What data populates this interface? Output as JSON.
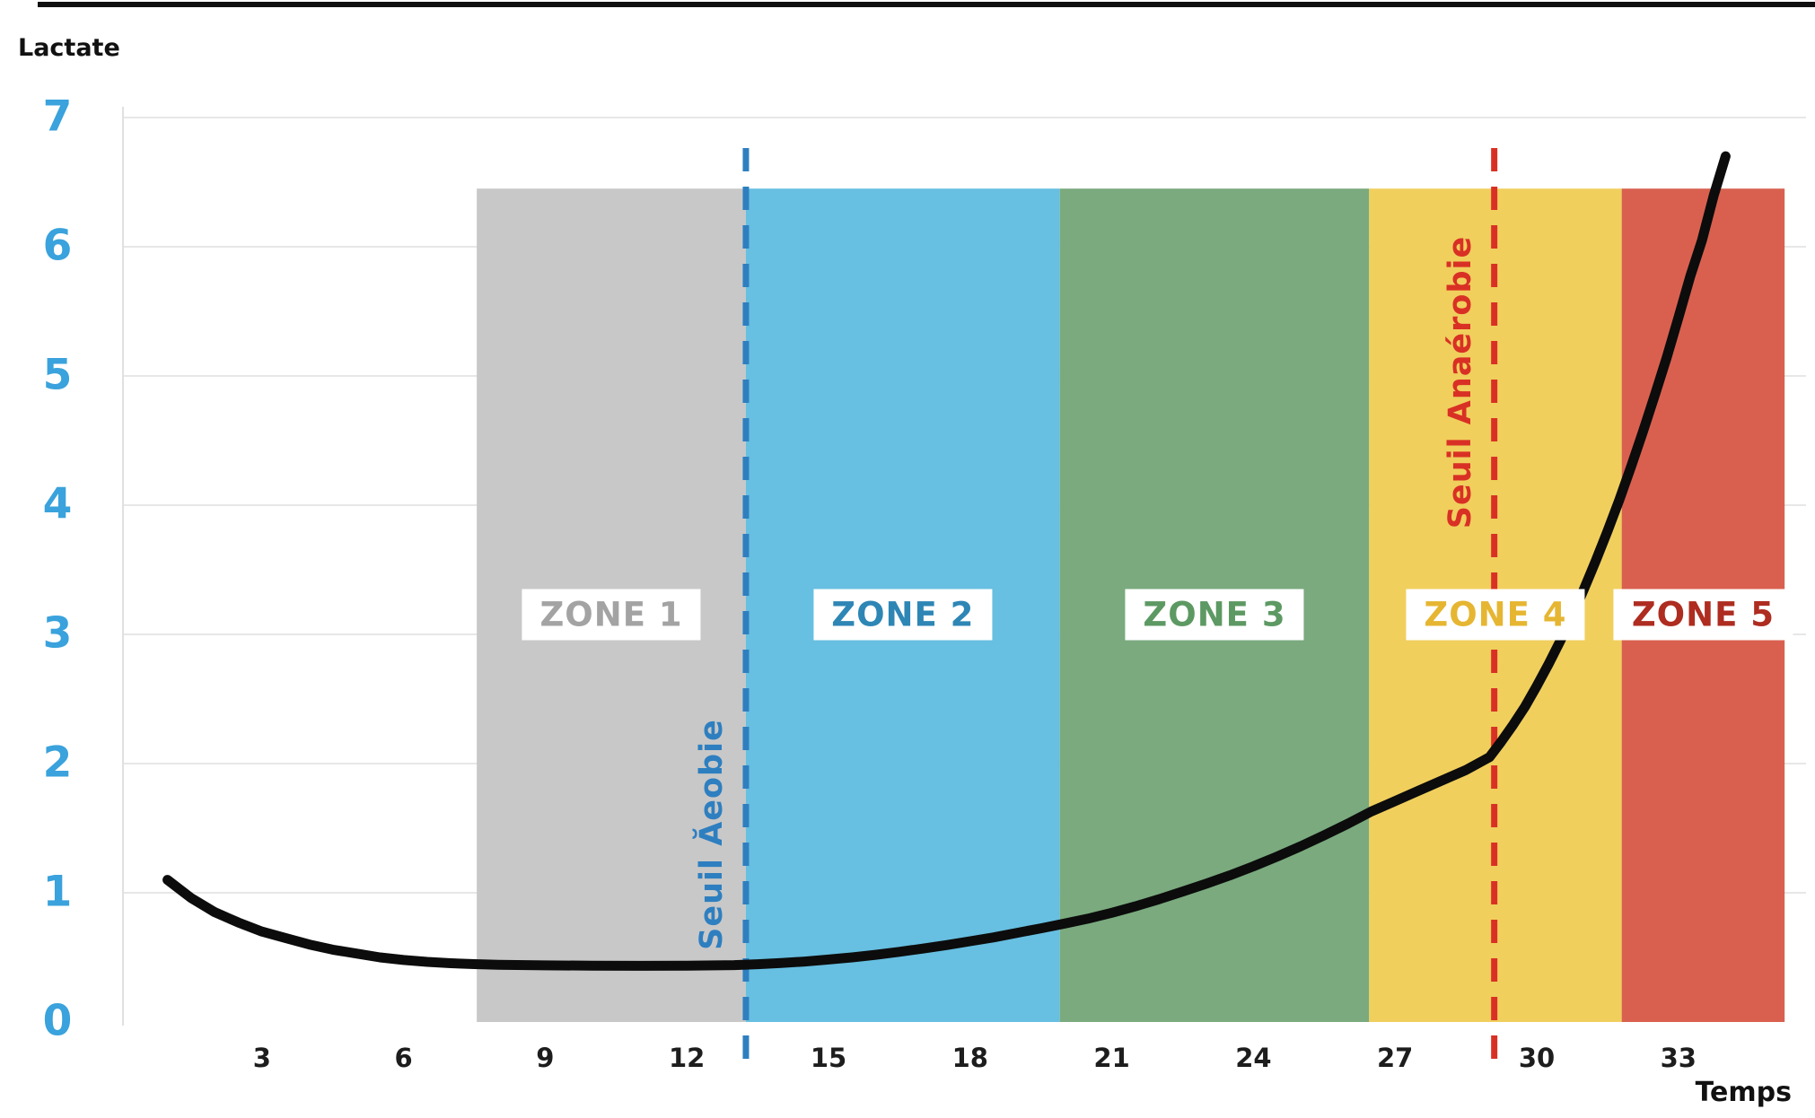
{
  "chart_data": {
    "type": "line",
    "title": "",
    "xlabel": "Temps",
    "ylabel": "Lactate",
    "xlim": [
      0,
      35.5
    ],
    "ylim": [
      0,
      7
    ],
    "x_ticks": [
      3,
      6,
      9,
      12,
      15,
      18,
      21,
      24,
      27,
      30,
      33
    ],
    "y_ticks": [
      0,
      1,
      2,
      3,
      4,
      5,
      6,
      7
    ],
    "grid": "horizontal",
    "legend": "none",
    "axis_tick_color": "#3aa2dc",
    "series": [
      {
        "name": "Lactate",
        "color": "#0c0c0c",
        "points": [
          [
            1,
            1.1
          ],
          [
            1.5,
            0.96
          ],
          [
            2,
            0.85
          ],
          [
            2.5,
            0.77
          ],
          [
            3,
            0.7
          ],
          [
            3.5,
            0.65
          ],
          [
            4,
            0.6
          ],
          [
            4.5,
            0.56
          ],
          [
            5,
            0.53
          ],
          [
            5.5,
            0.5
          ],
          [
            6,
            0.48
          ],
          [
            6.5,
            0.465
          ],
          [
            7,
            0.455
          ],
          [
            7.5,
            0.448
          ],
          [
            8,
            0.443
          ],
          [
            9,
            0.438
          ],
          [
            10,
            0.436
          ],
          [
            11,
            0.435
          ],
          [
            12,
            0.436
          ],
          [
            13,
            0.44
          ],
          [
            13.5,
            0.447
          ],
          [
            14,
            0.456
          ],
          [
            14.5,
            0.468
          ],
          [
            15,
            0.483
          ],
          [
            15.5,
            0.5
          ],
          [
            16,
            0.52
          ],
          [
            16.5,
            0.543
          ],
          [
            17,
            0.568
          ],
          [
            17.5,
            0.595
          ],
          [
            18,
            0.625
          ],
          [
            18.5,
            0.655
          ],
          [
            19,
            0.69
          ],
          [
            19.5,
            0.725
          ],
          [
            20,
            0.762
          ],
          [
            20.5,
            0.8
          ],
          [
            21,
            0.845
          ],
          [
            21.5,
            0.895
          ],
          [
            22,
            0.95
          ],
          [
            22.5,
            1.01
          ],
          [
            23,
            1.07
          ],
          [
            23.5,
            1.135
          ],
          [
            24,
            1.205
          ],
          [
            24.5,
            1.28
          ],
          [
            25,
            1.36
          ],
          [
            25.5,
            1.445
          ],
          [
            26,
            1.535
          ],
          [
            26.5,
            1.63
          ],
          [
            27,
            1.71
          ],
          [
            27.5,
            1.79
          ],
          [
            28,
            1.87
          ],
          [
            28.5,
            1.95
          ],
          [
            29,
            2.05
          ],
          [
            29.25,
            2.17
          ],
          [
            29.5,
            2.3
          ],
          [
            29.75,
            2.44
          ],
          [
            30,
            2.6
          ],
          [
            30.25,
            2.77
          ],
          [
            30.5,
            2.95
          ],
          [
            30.75,
            3.14
          ],
          [
            31,
            3.35
          ],
          [
            31.25,
            3.57
          ],
          [
            31.5,
            3.8
          ],
          [
            31.75,
            4.04
          ],
          [
            32,
            4.3
          ],
          [
            32.25,
            4.57
          ],
          [
            32.5,
            4.85
          ],
          [
            32.75,
            5.14
          ],
          [
            33,
            5.45
          ],
          [
            33.25,
            5.77
          ],
          [
            33.5,
            6.05
          ],
          [
            33.75,
            6.4
          ],
          [
            34,
            6.7
          ]
        ]
      }
    ],
    "zones": [
      {
        "label": "ZONE 1",
        "t_start": 7.55,
        "t_end": 13.25,
        "band_color": "#c8c8c8",
        "label_color": "#a3a3a3"
      },
      {
        "label": "ZONE 2",
        "t_start": 13.25,
        "t_end": 19.9,
        "band_color": "#67bfe1",
        "label_color": "#2e86b5"
      },
      {
        "label": "ZONE 3",
        "t_start": 19.9,
        "t_end": 26.45,
        "band_color": "#7aaa7e",
        "label_color": "#5d9963"
      },
      {
        "label": "ZONE 4",
        "t_start": 26.45,
        "t_end": 31.8,
        "band_color": "#f0cf5d",
        "label_color": "#e6b632"
      },
      {
        "label": "ZONE 5",
        "t_start": 31.8,
        "t_end": 35.25,
        "band_color": "#d9604f",
        "label_color": "#ae2c20"
      }
    ],
    "zone_top": 6.45,
    "zone_label_lactate": 3.15,
    "thresholds": [
      {
        "label": "Seuil Ăeobie",
        "t": 13.25,
        "color": "#2e7fc0",
        "label_lactate": 1.45
      },
      {
        "label": "Seuil Anaérobie",
        "t": 29.1,
        "color": "#d93025",
        "label_lactate": 4.95
      }
    ]
  }
}
